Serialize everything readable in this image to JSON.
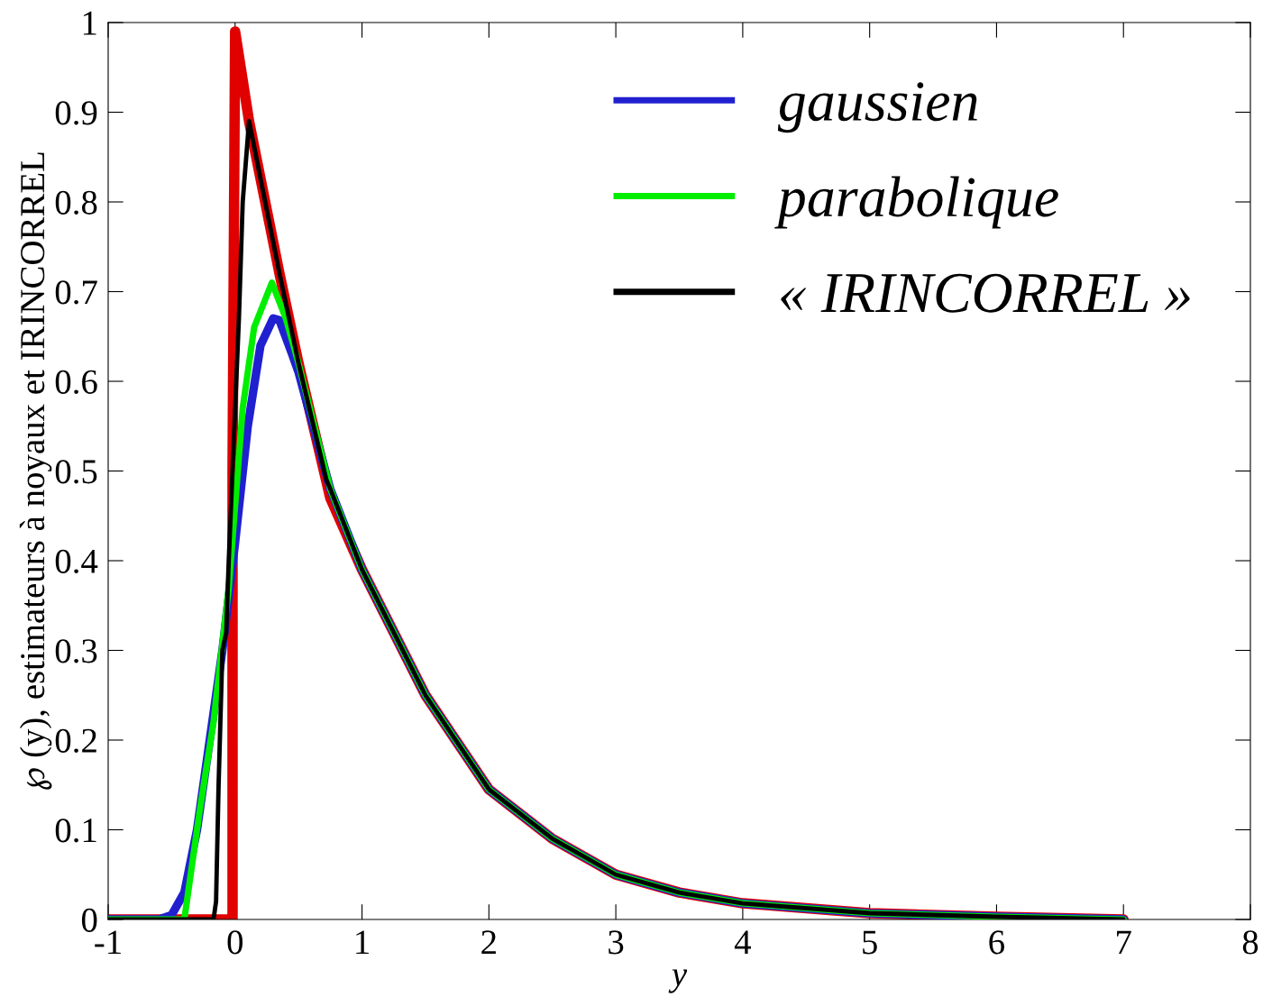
{
  "chart_data": {
    "type": "line",
    "xlabel": "y",
    "ylabel": "℘ (y), estimateurs à noyaux et IRINCORREL",
    "xlim": [
      -1,
      8
    ],
    "ylim": [
      0,
      1
    ],
    "xticks": [
      -1,
      0,
      1,
      2,
      3,
      4,
      5,
      6,
      7,
      8
    ],
    "yticks": [
      0,
      0.1,
      0.2,
      0.3,
      0.4,
      0.5,
      0.6,
      0.7,
      0.8,
      0.9,
      1
    ],
    "grid": false,
    "legend": "top right",
    "marker": "none",
    "line_style": "solid",
    "series": [
      {
        "color": "#e00000",
        "x": [
          -1,
          -0.02,
          -0.02,
          0.0,
          0.11,
          0.35,
          0.5,
          0.75,
          1,
          1.5,
          2,
          2.5,
          3,
          3.5,
          4,
          5,
          6,
          7
        ],
        "values": [
          0,
          0,
          0.5,
          0.99,
          0.89,
          0.72,
          0.62,
          0.47,
          0.39,
          0.25,
          0.145,
          0.09,
          0.05,
          0.03,
          0.018,
          0.007,
          0.003,
          0.0
        ]
      },
      {
        "name": "gaussien",
        "color": "#2020d0",
        "x": [
          -1,
          -0.6,
          -0.5,
          -0.4,
          -0.3,
          -0.2,
          -0.1,
          0,
          0.1,
          0.2,
          0.3,
          0.35,
          0.45,
          0.5,
          0.75,
          1,
          1.5,
          2,
          2.5,
          3,
          3.5,
          4,
          5,
          6,
          7
        ],
        "values": [
          0,
          0,
          0.005,
          0.03,
          0.1,
          0.2,
          0.3,
          0.42,
          0.55,
          0.64,
          0.67,
          0.668,
          0.63,
          0.61,
          0.48,
          0.39,
          0.25,
          0.145,
          0.09,
          0.05,
          0.03,
          0.018,
          0.007,
          0.003,
          0.0
        ]
      },
      {
        "name": "parabolique",
        "color": "#00ee00",
        "x": [
          -1,
          -0.4,
          -0.28,
          -0.17,
          -0.05,
          0.06,
          0.15,
          0.29,
          0.4,
          0.5,
          0.75,
          1,
          1.5,
          2,
          2.5,
          3,
          3.5,
          4,
          5,
          6,
          7
        ],
        "values": [
          0,
          0,
          0.12,
          0.22,
          0.37,
          0.57,
          0.66,
          0.71,
          0.67,
          0.62,
          0.48,
          0.39,
          0.25,
          0.145,
          0.09,
          0.05,
          0.03,
          0.018,
          0.007,
          0.003,
          0.0
        ]
      },
      {
        "name": "« IRINCORREL »",
        "color": "#000000",
        "x": [
          -1,
          -0.17,
          -0.15,
          -0.13,
          -0.1,
          -0.07,
          -0.05,
          0.03,
          0.06,
          0.11,
          0.35,
          0.5,
          0.72,
          0.75,
          1,
          1.5,
          2,
          2.5,
          3,
          3.5,
          4,
          5,
          6,
          7
        ],
        "values": [
          0,
          0,
          0.02,
          0.15,
          0.3,
          0.32,
          0.4,
          0.67,
          0.8,
          0.89,
          0.72,
          0.62,
          0.49,
          0.48,
          0.39,
          0.25,
          0.145,
          0.09,
          0.05,
          0.03,
          0.018,
          0.007,
          0.003,
          0.0
        ]
      }
    ]
  }
}
